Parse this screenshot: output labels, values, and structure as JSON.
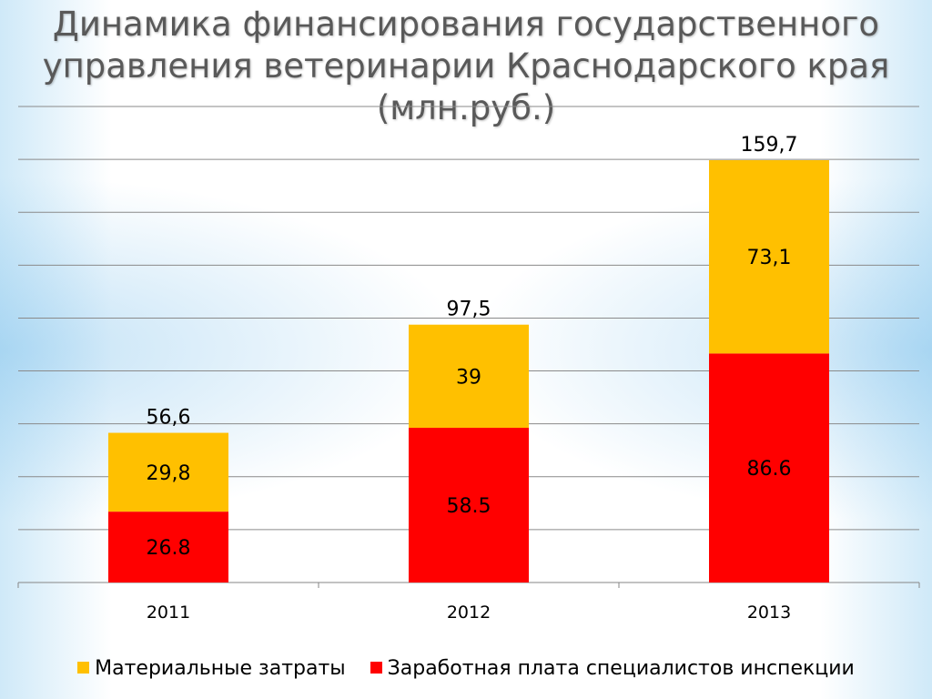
{
  "title": "Динамика финансирования государственного управления ветеринарии Краснодарского края (млн.руб.)",
  "chart_data": {
    "type": "bar",
    "stacked": true,
    "categories": [
      "2011",
      "2012",
      "2013"
    ],
    "series": [
      {
        "name": "Заработная плата специалистов инспекции",
        "values": [
          26.8,
          58.5,
          86.6
        ],
        "labels": [
          "26.8",
          "58.5",
          "86.6"
        ],
        "color": "#ff0000"
      },
      {
        "name": "Материальные затраты",
        "values": [
          29.8,
          39,
          73.1
        ],
        "labels": [
          "29,8",
          "39",
          "73,1"
        ],
        "color": "#ffc000"
      }
    ],
    "totals": [
      56.6,
      97.5,
      159.7
    ],
    "total_labels": [
      "56,6",
      "97,5",
      "159,7"
    ],
    "ylim": [
      0,
      180
    ],
    "gridlines": true,
    "legend_position": "bottom",
    "legend_order": [
      "Материальные затраты",
      "Заработная плата специалистов инспекции"
    ]
  }
}
